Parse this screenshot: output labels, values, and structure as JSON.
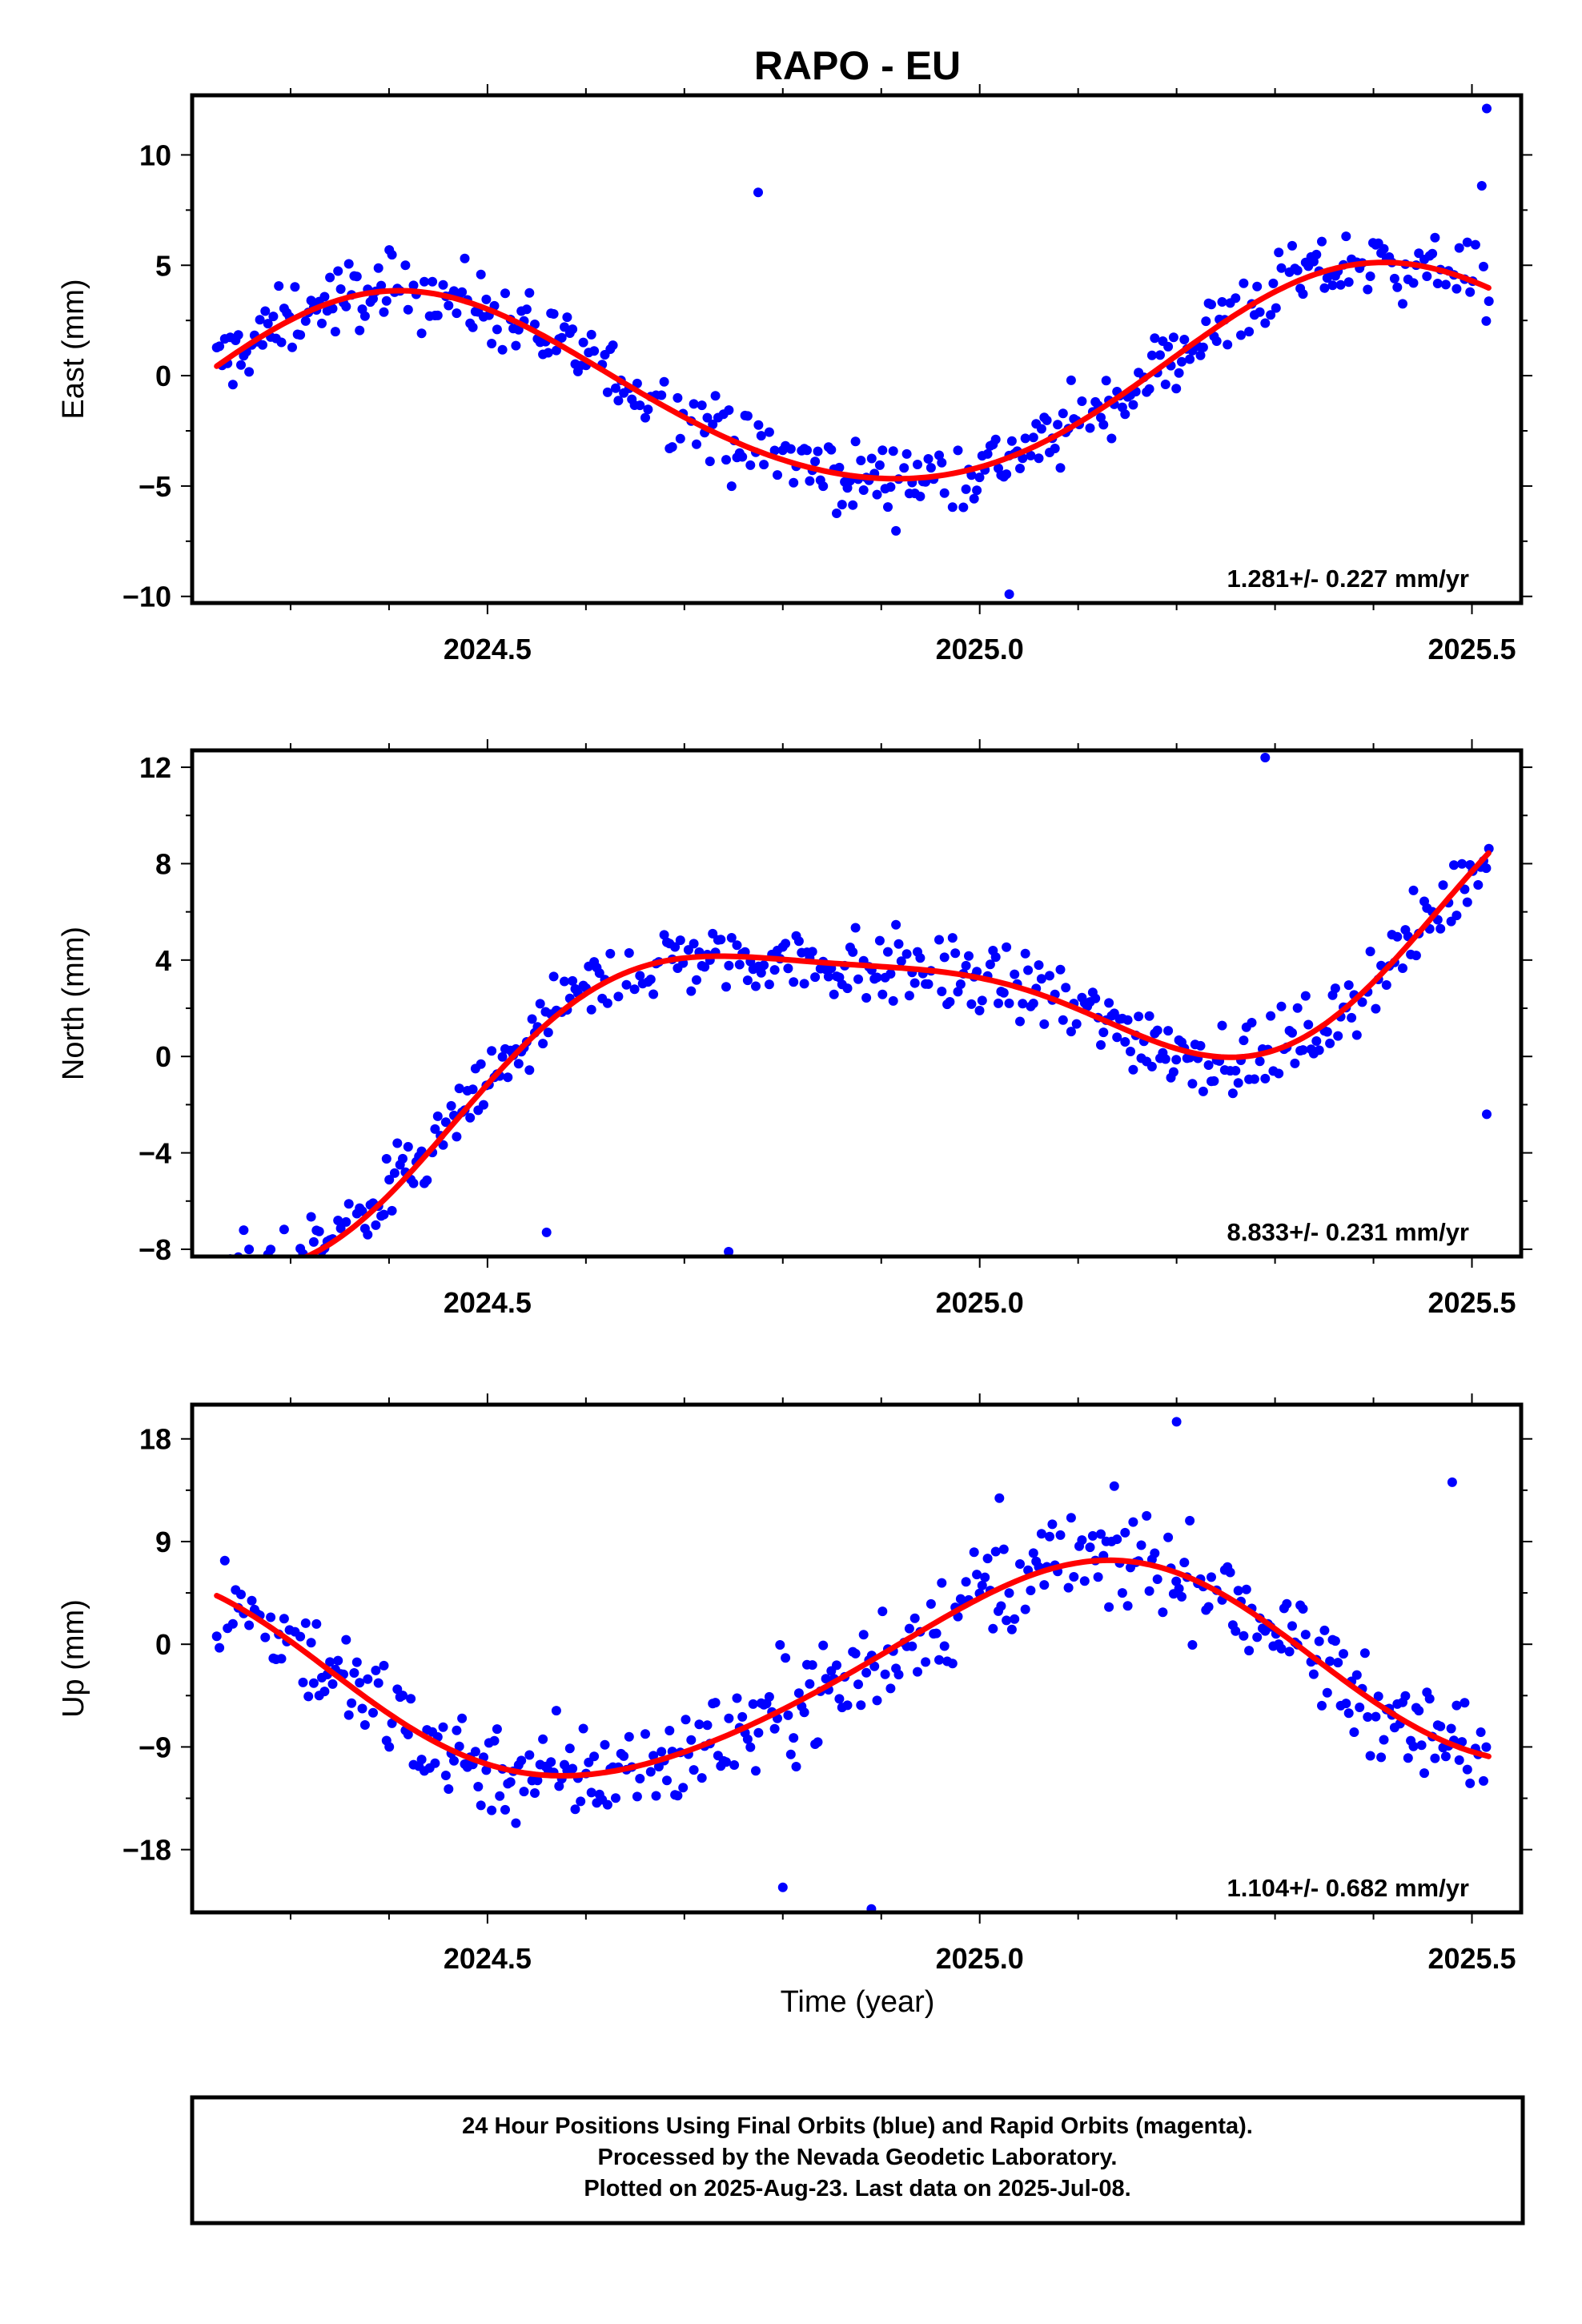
{
  "title": "RAPO - EU",
  "colors": {
    "final_orbits": "#0000ff",
    "fit_line": "#ff0000",
    "frame": "#000000"
  },
  "chart_data": [
    {
      "type": "scatter",
      "component": "east",
      "ylabel": "East (mm)",
      "xlim": [
        2024.2,
        2025.55
      ],
      "ylim": [
        -10.3,
        12.7
      ],
      "yticks": [
        10,
        5,
        0,
        -5,
        -10
      ],
      "ytick_labels": [
        "10",
        "5",
        "0",
        "−5",
        "−10"
      ],
      "xticks": [
        2024.5,
        2025.0,
        2025.5
      ],
      "xtick_labels": [
        "2024.5",
        "2025.0",
        "2025.5"
      ],
      "rate_label": "1.281+/- 0.227 mm/yr",
      "fit": {
        "rate": 1.281,
        "t0": 2024.88,
        "offset": -0.4,
        "sin": 2.4,
        "cos": -3.9,
        "sin2": -0.3,
        "cos2": 0.0,
        "t_range": [
          2024.225,
          2025.52
        ]
      },
      "noise": 1.15,
      "outliers": [
        [
          2025.515,
          12.1
        ],
        [
          2025.51,
          8.6
        ],
        [
          2024.775,
          8.3
        ],
        [
          2025.03,
          -9.9
        ]
      ],
      "grid": false
    },
    {
      "type": "scatter",
      "component": "north",
      "ylabel": "North (mm)",
      "xlim": [
        2024.2,
        2025.55
      ],
      "ylim": [
        -8.3,
        12.7
      ],
      "yticks": [
        12,
        8,
        4,
        0,
        -4,
        -8
      ],
      "ytick_labels": [
        "12",
        "8",
        "4",
        "0",
        "−4",
        "−8"
      ],
      "xticks": [
        2024.5,
        2025.0,
        2025.5
      ],
      "xtick_labels": [
        "2024.5",
        "2025.0",
        "2025.5"
      ],
      "rate_label": "8.833+/- 0.231 mm/yr",
      "fit": {
        "rate": 8.833,
        "t0": 2024.88,
        "offset": 1.6,
        "sin": -4.3,
        "cos": 0.0,
        "sin2": 0.8,
        "cos2": 0.6,
        "t_range": [
          2024.225,
          2025.52
        ]
      },
      "noise": 1.1,
      "outliers": [
        [
          2025.515,
          -2.4
        ],
        [
          2024.745,
          -8.1
        ],
        [
          2024.56,
          -7.3
        ],
        [
          2025.29,
          12.4
        ]
      ],
      "grid": false
    },
    {
      "type": "scatter",
      "component": "up",
      "ylabel": "Up (mm)",
      "xlim": [
        2024.2,
        2025.55
      ],
      "ylim": [
        -23.5,
        21
      ],
      "yticks": [
        18,
        9,
        0,
        -9,
        -18
      ],
      "ytick_labels": [
        "18",
        "9",
        "0",
        "−9",
        "−18"
      ],
      "xticks": [
        2024.5,
        2025.0,
        2025.5
      ],
      "xtick_labels": [
        "2024.5",
        "2025.0",
        "2025.5"
      ],
      "rate_label": "1.104+/- 0.682 mm/yr",
      "fit": {
        "rate": 1.104,
        "t0": 2024.88,
        "offset": -2.5,
        "sin": 5.7,
        "cos": 7.0,
        "sin2": 0.6,
        "cos2": -0.6,
        "t_range": [
          2024.225,
          2025.52
        ]
      },
      "noise": 3.2,
      "outliers": [
        [
          2025.2,
          19.5
        ],
        [
          2025.48,
          14.2
        ],
        [
          2024.89,
          -23.2
        ],
        [
          2024.8,
          -21.3
        ],
        [
          2025.02,
          12.8
        ]
      ],
      "grid": false
    }
  ],
  "xlabel": "Time (year)",
  "footer": {
    "lines": [
      "24 Hour Positions Using Final Orbits (blue) and Rapid Orbits (magenta).",
      "Processed by the Nevada Geodetic Laboratory.",
      "Plotted on 2025-Aug-23. Last data on 2025-Jul-08."
    ]
  }
}
